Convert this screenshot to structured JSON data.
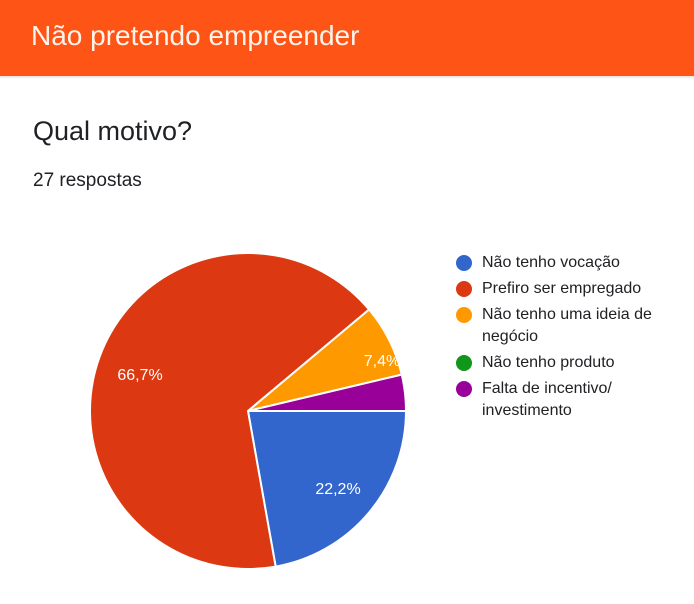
{
  "header": {
    "title": "Não pretendo empreender",
    "color": "#fe5416"
  },
  "question": {
    "title": "Qual motivo?",
    "responses": "27 respostas"
  },
  "chart_data": {
    "type": "pie",
    "title": "Qual motivo?",
    "subtitle": "27 respostas",
    "categories": [
      "Não tenho vocação",
      "Prefiro ser empregado",
      "Não tenho uma ideia de negócio",
      "Não tenho produto",
      "Falta de incentivo/ investimento"
    ],
    "values": [
      22.2,
      66.7,
      7.4,
      0,
      3.7
    ],
    "counts": [
      6,
      18,
      2,
      0,
      1
    ],
    "colors": [
      "#3366cc",
      "#dc3912",
      "#ff9900",
      "#109618",
      "#990099"
    ],
    "labels_shown": [
      "22,2%",
      "66,7%",
      "7,4%",
      "",
      ""
    ],
    "legend_position": "right"
  },
  "legend": [
    {
      "label": "Não tenho vocação",
      "color": "#3366cc"
    },
    {
      "label": "Prefiro ser empregado",
      "color": "#dc3912"
    },
    {
      "label": "Não tenho uma ideia de negócio",
      "color": "#ff9900"
    },
    {
      "label": "Não tenho produto",
      "color": "#109618"
    },
    {
      "label": "Falta de incentivo/ investimento",
      "color": "#990099"
    }
  ],
  "slice_labels": {
    "blue": "22,2%",
    "red": "66,7%",
    "orange": "7,4%"
  }
}
